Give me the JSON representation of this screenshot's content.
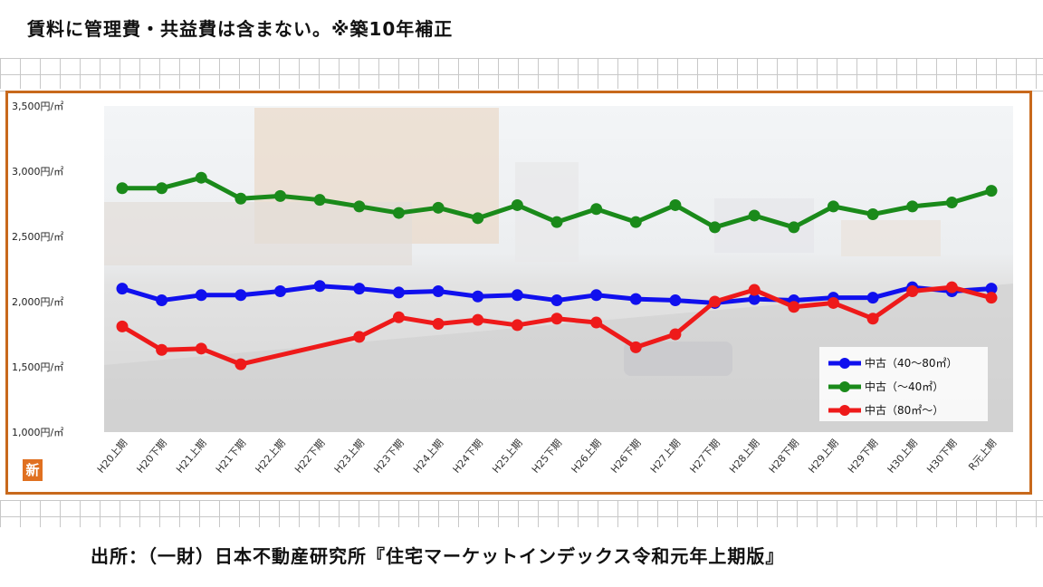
{
  "header": {
    "note": "賃料に管理費・共益費は含まない。※築10年補正"
  },
  "footer": {
    "source": "出所：（一財）日本不動産研究所『住宅マーケットインデックス令和元年上期版』"
  },
  "badge": {
    "label": "新"
  },
  "colors": {
    "frame": "#c8691c",
    "blue": "#1010ee",
    "green": "#1a8a1a",
    "red": "#ee1a1a"
  },
  "chart_data": {
    "type": "line",
    "title": "",
    "xlabel": "",
    "ylabel": "",
    "ylim": [
      1000,
      3500
    ],
    "y_ticks": [
      {
        "value": 3500,
        "label": "3,500円/㎡"
      },
      {
        "value": 3000,
        "label": "3,000円/㎡"
      },
      {
        "value": 2500,
        "label": "2,500円/㎡"
      },
      {
        "value": 2000,
        "label": "2,000円/㎡"
      },
      {
        "value": 1500,
        "label": "1,500円/㎡"
      },
      {
        "value": 1000,
        "label": "1,000円/㎡"
      }
    ],
    "categories": [
      "H20上期",
      "H20下期",
      "H21上期",
      "H21下期",
      "H22上期",
      "H22下期",
      "H23上期",
      "H23下期",
      "H24上期",
      "H24下期",
      "H25上期",
      "H25下期",
      "H26上期",
      "H26下期",
      "H27上期",
      "H27下期",
      "H28上期",
      "H28下期",
      "H29上期",
      "H29下期",
      "H30上期",
      "H30下期",
      "R元上期"
    ],
    "legend_position": "bottom-right",
    "series": [
      {
        "name": "中古（40～80㎡）",
        "color": "#1010ee",
        "values": [
          2100,
          2010,
          2050,
          2050,
          2080,
          2120,
          2100,
          2070,
          2080,
          2040,
          2050,
          2010,
          2050,
          2020,
          2010,
          1990,
          2020,
          2010,
          2030,
          2030,
          2110,
          2080,
          2100
        ]
      },
      {
        "name": "中古（～40㎡）",
        "color": "#1a8a1a",
        "values": [
          2870,
          2870,
          2950,
          2790,
          2810,
          2780,
          2730,
          2680,
          2720,
          2640,
          2740,
          2610,
          2710,
          2610,
          2740,
          2570,
          2660,
          2570,
          2730,
          2670,
          2730,
          2760,
          2850
        ]
      },
      {
        "name": "中古（80㎡～）",
        "color": "#ee1a1a",
        "values": [
          1810,
          1630,
          1640,
          1520,
          null,
          null,
          1730,
          1880,
          1830,
          1860,
          1820,
          1870,
          1840,
          1650,
          1750,
          2000,
          2090,
          1960,
          1990,
          1870,
          2080,
          2110,
          2030
        ]
      }
    ]
  }
}
